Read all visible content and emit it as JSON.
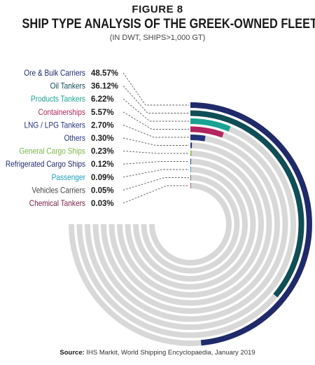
{
  "figure_label": "FIGURE 8",
  "source": {
    "label": "Source:",
    "text": "IHS Markit, World Shipping Encyclopaedia, January 2019"
  },
  "chart_data": {
    "type": "radial-bar",
    "title": "SHIP TYPE ANALYSIS OF THE GREEK-OWNED FLEET",
    "subtitle": "(IN DWT, SHIPS>1,000 GT)",
    "track_color": "#d8d8d8",
    "leader_color": "#555555",
    "series": [
      {
        "label": "Ore & Bulk Carriers",
        "percent_text": "48.57%",
        "value": 48.57,
        "color": "#1f2a6b"
      },
      {
        "label": "Oil Tankers",
        "percent_text": "36.12%",
        "value": 36.12,
        "color": "#0f4d57"
      },
      {
        "label": "Products Tankers",
        "percent_text": "6.22%",
        "value": 6.22,
        "color": "#1aa392"
      },
      {
        "label": "Containerships",
        "percent_text": "5.57%",
        "value": 5.57,
        "color": "#b4245e"
      },
      {
        "label": "LNG / LPG Tankers",
        "percent_text": "2.70%",
        "value": 2.7,
        "color": "#23337a"
      },
      {
        "label": "Others",
        "percent_text": "0.30%",
        "value": 0.3,
        "color": "#24357a"
      },
      {
        "label": "General Cargo Ships",
        "percent_text": "0.23%",
        "value": 0.23,
        "color": "#7ab548"
      },
      {
        "label": "Refrigerated Cargo Ships",
        "percent_text": "0.12%",
        "value": 0.12,
        "color": "#1f2a6b"
      },
      {
        "label": "Passenger",
        "percent_text": "0.09%",
        "value": 0.09,
        "color": "#1aa0b8"
      },
      {
        "label": "Vehicles Carriers",
        "percent_text": "0.05%",
        "value": 0.05,
        "color": "#444444"
      },
      {
        "label": "Chemical Tankers",
        "percent_text": "0.03%",
        "value": 0.03,
        "color": "#7a2048"
      }
    ]
  }
}
